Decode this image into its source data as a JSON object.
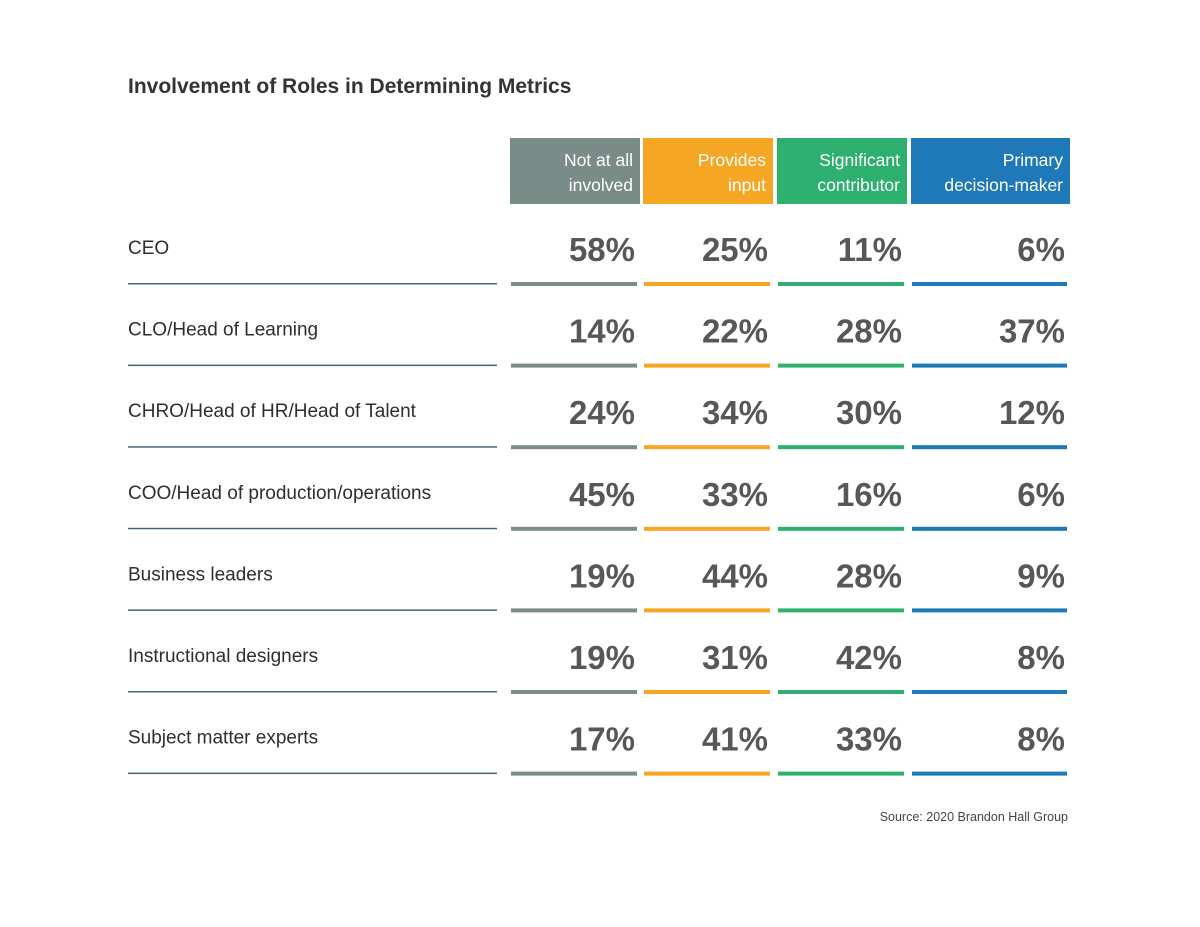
{
  "chart_data": {
    "type": "table",
    "title": "Involvement of Roles in Determining Metrics",
    "columns": [
      {
        "name": "Not at all involved",
        "lines": [
          "Not at all",
          "involved"
        ],
        "color": "#7a8c88"
      },
      {
        "name": "Provides input",
        "lines": [
          "Provides",
          "input"
        ],
        "color": "#f5a623"
      },
      {
        "name": "Significant contributor",
        "lines": [
          "Significant",
          "contributor"
        ],
        "color": "#2db06f"
      },
      {
        "name": "Primary decision-maker",
        "lines": [
          "Primary",
          "decision-maker"
        ],
        "color": "#1f78b8"
      }
    ],
    "rows": [
      {
        "label": "CEO",
        "values": [
          58,
          25,
          11,
          6
        ]
      },
      {
        "label": "CLO/Head of Learning",
        "values": [
          14,
          22,
          28,
          37
        ]
      },
      {
        "label": "CHRO/Head of HR/Head of Talent",
        "values": [
          24,
          34,
          30,
          12
        ]
      },
      {
        "label": "COO/Head of production/operations",
        "values": [
          45,
          33,
          16,
          6
        ]
      },
      {
        "label": "Business leaders",
        "values": [
          19,
          44,
          28,
          9
        ]
      },
      {
        "label": "Instructional designers",
        "values": [
          19,
          31,
          42,
          8
        ]
      },
      {
        "label": "Subject matter experts",
        "values": [
          17,
          41,
          33,
          8
        ]
      }
    ],
    "value_suffix": "%",
    "source": "Source: 2020 Brandon Hall Group",
    "row_rule_color": "#4a6478"
  }
}
